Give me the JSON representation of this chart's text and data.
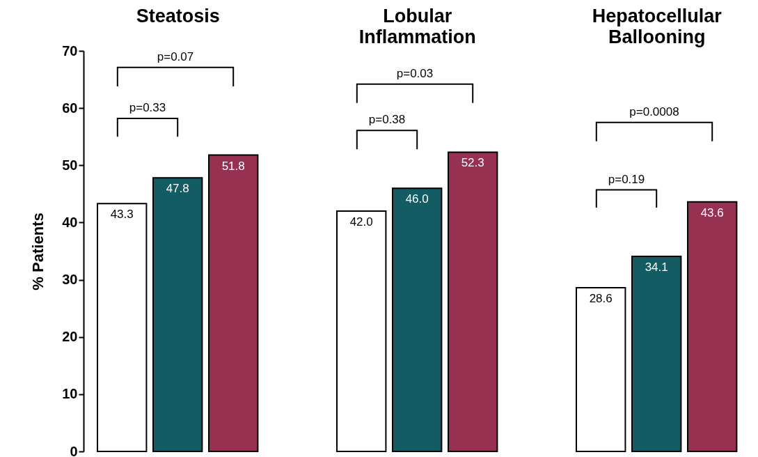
{
  "chart_data": {
    "type": "bar",
    "categories": [
      "Steatosis",
      "Lobular Inflammation",
      "Hepatocellular Ballooning"
    ],
    "series": [
      {
        "color": "#ffffff",
        "values": [
          43.3,
          42.0,
          28.6
        ],
        "value_labels": [
          "43.3",
          "42.0",
          "28.6"
        ]
      },
      {
        "color": "#135c63",
        "values": [
          47.8,
          46.0,
          34.1
        ],
        "value_labels": [
          "47.8",
          "46.0",
          "34.1"
        ]
      },
      {
        "color": "#973152",
        "values": [
          51.8,
          52.3,
          43.6
        ],
        "value_labels": [
          "51.8",
          "52.3",
          "43.6"
        ]
      }
    ],
    "ylabel": "% Patients",
    "ylim": [
      0,
      70
    ],
    "yticks": [
      0,
      10,
      20,
      30,
      40,
      50,
      60,
      70
    ],
    "grid": false,
    "annotations": [
      "p=0.07",
      "p=0.33",
      "p=0.03",
      "p=0.38",
      "p=0.0008",
      "p=0.19"
    ]
  }
}
